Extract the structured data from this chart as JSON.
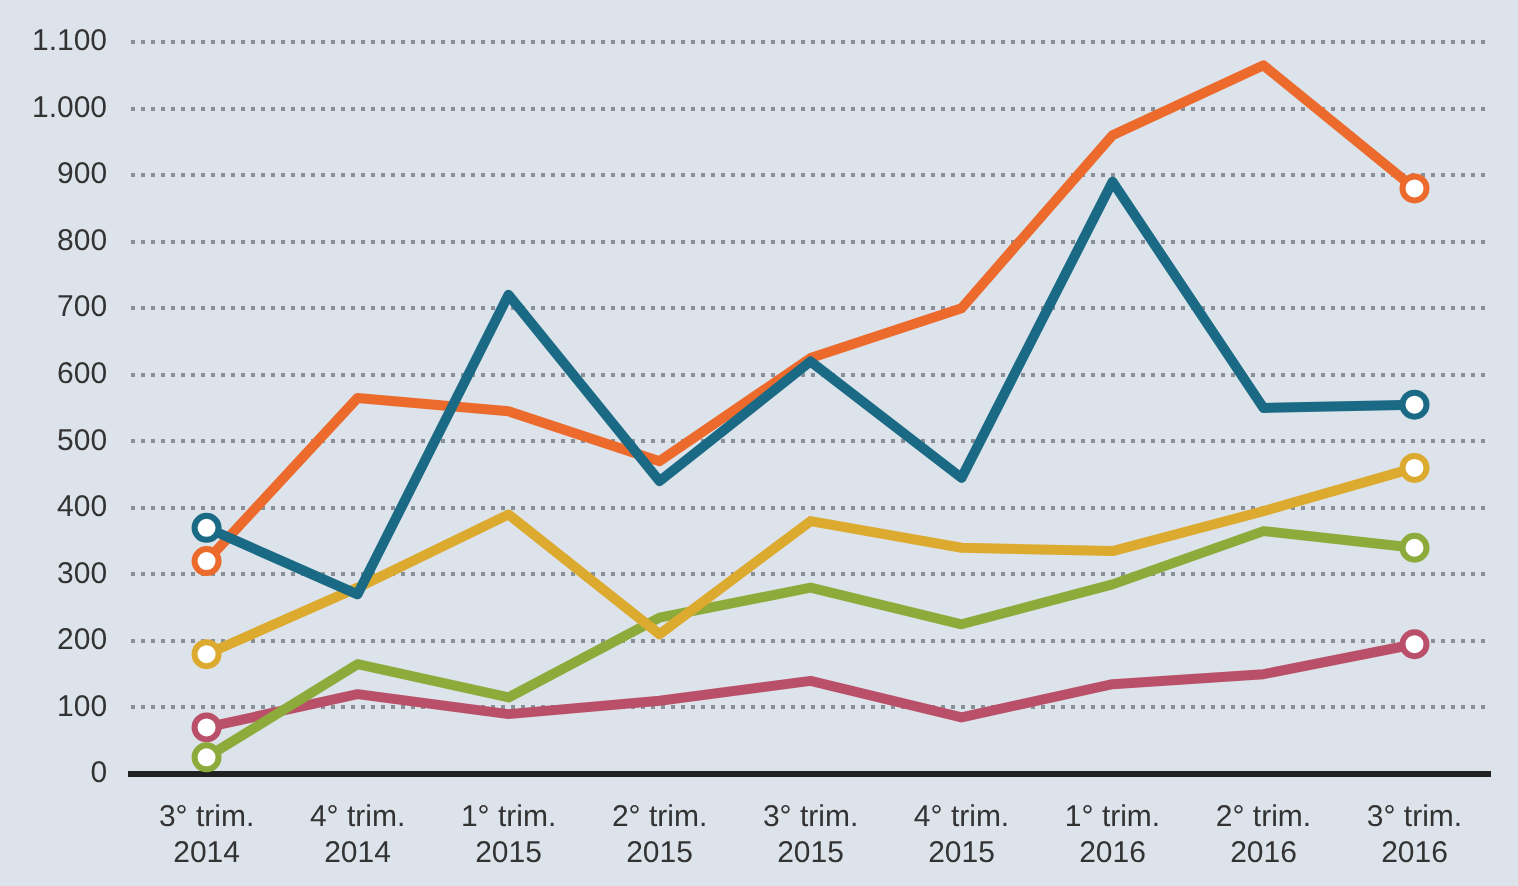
{
  "chart_data": {
    "type": "line",
    "categories": [
      "3° trim.\n2014",
      "4° trim.\n2014",
      "1° trim.\n2015",
      "2° trim.\n2015",
      "3° trim.\n2015",
      "4° trim.\n2015",
      "1° trim.\n2016",
      "2° trim.\n2016",
      "3° trim.\n2016"
    ],
    "series": [
      {
        "color": "#1b6a85",
        "values": [
          370,
          270,
          720,
          440,
          620,
          445,
          890,
          550,
          555
        ]
      },
      {
        "color": "#ec6a2c",
        "values": [
          320,
          565,
          545,
          470,
          625,
          700,
          960,
          1065,
          880
        ]
      },
      {
        "color": "#dcaa2e",
        "values": [
          180,
          280,
          390,
          210,
          380,
          340,
          335,
          395,
          460
        ]
      },
      {
        "color": "#8cab3a",
        "values": [
          25,
          165,
          115,
          235,
          280,
          225,
          285,
          365,
          340
        ]
      },
      {
        "color": "#b94f68",
        "values": [
          70,
          120,
          90,
          110,
          140,
          85,
          135,
          150,
          195
        ]
      }
    ],
    "ylim": [
      0,
      1100
    ],
    "yticks": [
      0,
      100,
      200,
      300,
      400,
      500,
      600,
      700,
      800,
      900,
      {
        "value": 1000,
        "label": "1.000"
      },
      {
        "value": 1100,
        "label": "1.100"
      }
    ],
    "grid": "y",
    "legend": false,
    "line_style": "solid"
  }
}
